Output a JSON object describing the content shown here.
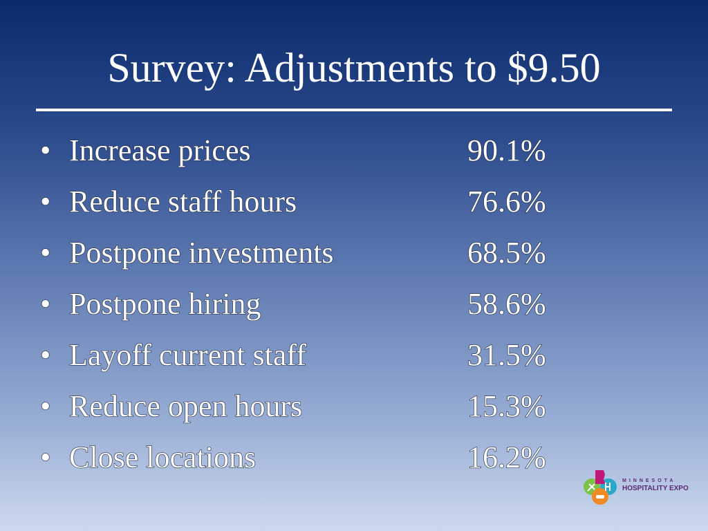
{
  "slide": {
    "title": "Survey: Adjustments to $9.50",
    "bullet": "•",
    "items": [
      {
        "label": "Increase prices",
        "value": "90.1%"
      },
      {
        "label": "Reduce staff hours",
        "value": "76.6%"
      },
      {
        "label": "Postpone investments",
        "value": "68.5%"
      },
      {
        "label": "Postpone hiring",
        "value": "58.6%"
      },
      {
        "label": "Layoff current staff",
        "value": "31.5%"
      },
      {
        "label": "Reduce open hours",
        "value": "15.3%"
      },
      {
        "label": "Close locations",
        "value": "16.2%"
      }
    ]
  },
  "logo": {
    "line1": "MINNESOTA",
    "line2": "HOSPITALITY EXPO",
    "colors": {
      "green": "#7cc24a",
      "magenta": "#c2187a",
      "teal": "#28a9c8",
      "orange": "#f08a24",
      "text": "#5a2a6e"
    }
  },
  "colors": {
    "background_top": "#0b2a6b",
    "background_bottom": "#cdd9ee",
    "text": "#ffffff"
  }
}
